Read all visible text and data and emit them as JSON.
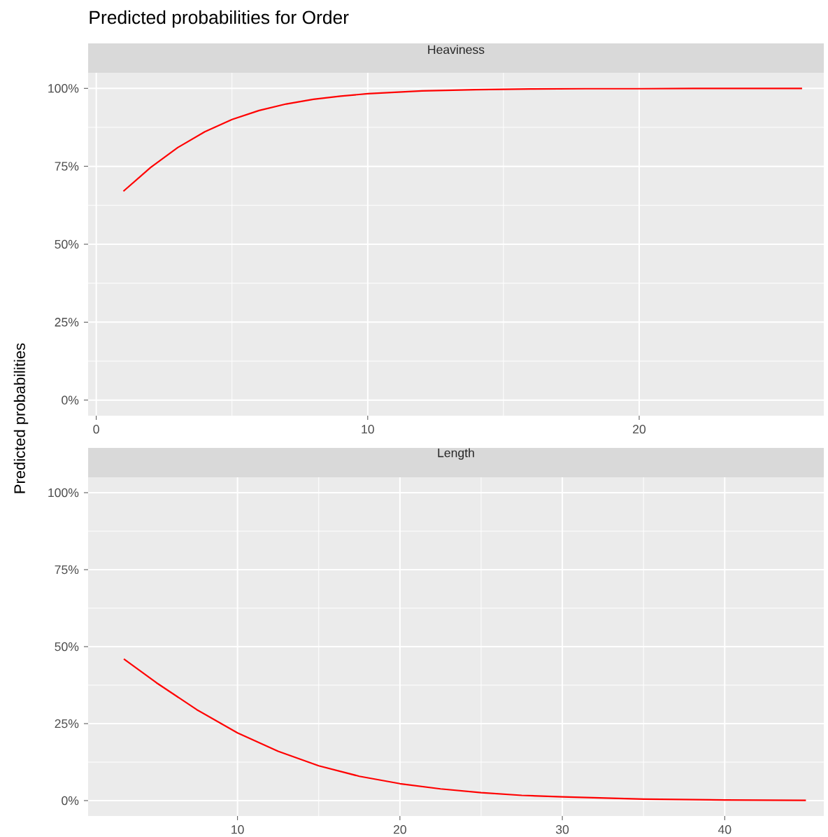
{
  "chart_data": [
    {
      "type": "line",
      "title": "Predicted probabilities for Order",
      "subtitle": "Heaviness",
      "ylabel": "Predicted probabilities",
      "grid": true,
      "x": [
        1,
        2,
        3,
        4,
        5,
        6,
        7,
        8,
        9,
        10,
        12,
        14,
        16,
        18,
        20,
        22,
        24,
        26
      ],
      "series": [
        {
          "color": "#ff0000",
          "values": [
            67.0,
            74.6,
            81.0,
            86.1,
            90.0,
            92.9,
            95.0,
            96.5,
            97.5,
            98.3,
            99.2,
            99.6,
            99.8,
            99.9,
            99.9,
            100,
            100,
            100
          ]
        }
      ],
      "xlim": [
        -0.3,
        26.8
      ],
      "xticks": [
        0,
        10,
        20
      ],
      "ylim": [
        -5,
        105
      ],
      "yticks": [
        {
          "value": 0,
          "label": "0%"
        },
        {
          "value": 25,
          "label": "25%"
        },
        {
          "value": 50,
          "label": "50%"
        },
        {
          "value": 75,
          "label": "75%"
        },
        {
          "value": 100,
          "label": "100%"
        }
      ]
    },
    {
      "type": "line",
      "subtitle": "Length",
      "grid": true,
      "x": [
        3,
        5,
        7.5,
        10,
        12.5,
        15,
        17.5,
        20,
        22.5,
        25,
        27.5,
        30,
        35,
        40,
        45
      ],
      "series": [
        {
          "color": "#ff0000",
          "values": [
            46.0,
            38.3,
            29.5,
            22.0,
            16.0,
            11.3,
            7.9,
            5.5,
            3.8,
            2.6,
            1.7,
            1.2,
            0.5,
            0.2,
            0.1
          ]
        }
      ],
      "xlim": [
        0.8,
        46.1
      ],
      "xticks": [
        10,
        20,
        30,
        40
      ],
      "ylim": [
        -5,
        105
      ],
      "yticks": [
        {
          "value": 0,
          "label": "0%"
        },
        {
          "value": 25,
          "label": "25%"
        },
        {
          "value": 50,
          "label": "50%"
        },
        {
          "value": 75,
          "label": "75%"
        },
        {
          "value": 100,
          "label": "100%"
        }
      ]
    }
  ]
}
